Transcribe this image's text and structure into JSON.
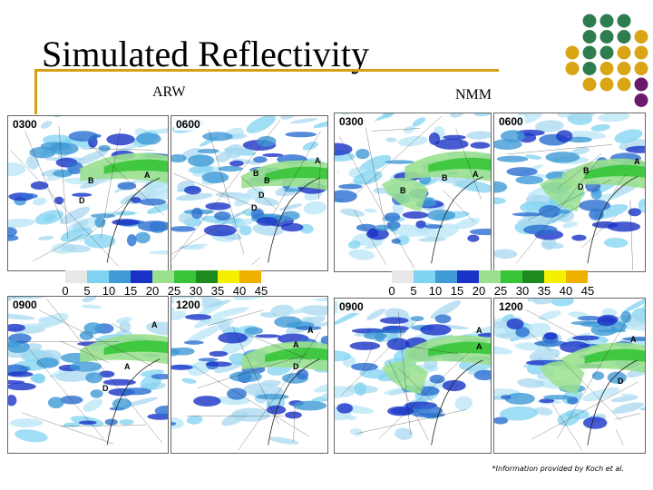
{
  "title": "Simulated Reflectivity",
  "labels": {
    "arw": "ARW",
    "nmm": "NMM"
  },
  "panels": [
    {
      "model": "ARW",
      "time": "0300",
      "marks": [
        "A",
        "B",
        "D"
      ]
    },
    {
      "model": "ARW",
      "time": "0600",
      "marks": [
        "A",
        "B",
        "B",
        "D",
        "D"
      ]
    },
    {
      "model": "NMM",
      "time": "0300",
      "marks": [
        "A",
        "B",
        "B"
      ]
    },
    {
      "model": "NMM",
      "time": "0600",
      "marks": [
        "A",
        "B",
        "D"
      ]
    },
    {
      "model": "ARW",
      "time": "0900",
      "marks": [
        "A",
        "A",
        "D"
      ]
    },
    {
      "model": "ARW",
      "time": "1200",
      "marks": [
        "A",
        "A",
        "D"
      ]
    },
    {
      "model": "NMM",
      "time": "0900",
      "marks": [
        "A",
        "A"
      ]
    },
    {
      "model": "NMM",
      "time": "1200",
      "marks": [
        "A",
        "D"
      ]
    }
  ],
  "colorbar": {
    "ticks": [
      "0",
      "5",
      "10",
      "15",
      "20",
      "25",
      "30",
      "35",
      "40",
      "45"
    ],
    "colors": [
      "#e8e8e8",
      "#7fd3f0",
      "#3f9ad6",
      "#1a33c7",
      "#9be08f",
      "#37c537",
      "#1d8a1d",
      "#f5f000",
      "#f0b000"
    ]
  },
  "credit": "*Information provided by Koch et al.",
  "decor_colors": {
    "green": "#2e7d4f",
    "gold": "#d9a514",
    "purple": "#6b1a6b",
    "rule": "#d4a017"
  }
}
